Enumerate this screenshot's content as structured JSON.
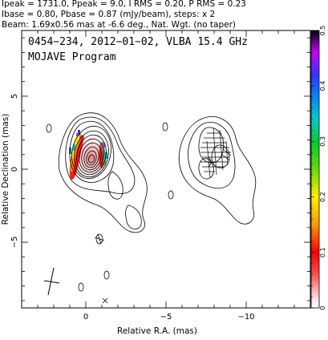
{
  "header": {
    "line1": "Ipeak = 1731.0, Ppeak = 9.0, I RMS = 0.20, P RMS = 0.23",
    "line2": "Ibase = 0.80, Pbase = 0.87 (mJy/beam), steps: x 2",
    "line3": "Beam: 1.69x0.56 mas at -6.6 deg., Nat. Wgt. (no taper)"
  },
  "plot": {
    "title_line1": "0454−234, 2012−01−02, VLBA 15.4 GHz",
    "title_line2": "MOJAVE Program"
  },
  "chart_data": {
    "type": "contour",
    "xlabel": "Relative R.A. (mas)",
    "ylabel": "Relative Declination (mas)",
    "xlim": [
      4,
      -14
    ],
    "ylim": [
      -9.5,
      9.5
    ],
    "x_ticks": [
      {
        "value": 0,
        "label": "0"
      },
      {
        "value": -5,
        "label": "−5"
      },
      {
        "value": -10,
        "label": "−10"
      }
    ],
    "y_ticks": [
      {
        "value": 5,
        "label": "5"
      },
      {
        "value": 0,
        "label": "0"
      },
      {
        "value": -5,
        "label": "−5"
      }
    ],
    "colorbar": {
      "min": 0,
      "max": 0.5,
      "ticks": [
        {
          "value": 0.5,
          "label": "0.5"
        },
        {
          "value": 0.4,
          "label": "0.4"
        },
        {
          "value": 0.3,
          "label": "0.3"
        },
        {
          "value": 0.2,
          "label": "0.2"
        },
        {
          "value": 0.1,
          "label": "0.1"
        },
        {
          "value": 0,
          "label": "0"
        }
      ]
    },
    "left_panel_center": [
      0,
      0
    ],
    "right_panel_center": [
      -7.5,
      0
    ]
  }
}
